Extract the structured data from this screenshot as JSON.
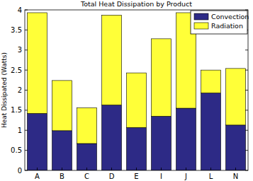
{
  "chart_data": {
    "type": "bar",
    "title": "Total Heat Dissipation by Product",
    "y_label": "Heat Dissipated (Watts)",
    "categories": [
      "A",
      "B",
      "C",
      "D",
      "E",
      "I",
      "J",
      "L",
      "N"
    ],
    "series": [
      {
        "name": "Convection",
        "color": "#2d2a86",
        "values": [
          1.42,
          0.99,
          0.67,
          1.63,
          1.07,
          1.35,
          1.55,
          1.93,
          1.13
        ]
      },
      {
        "name": "Radiation",
        "color": "#ffff38",
        "values": [
          2.51,
          1.25,
          0.89,
          2.24,
          1.36,
          1.93,
          2.38,
          0.57,
          1.41
        ]
      }
    ],
    "stacked": true,
    "ylim": [
      0,
      4
    ],
    "yticks": [
      0,
      0.5,
      1,
      1.5,
      2,
      2.5,
      3,
      3.5,
      4
    ],
    "grid": false,
    "legend": "northeast"
  }
}
